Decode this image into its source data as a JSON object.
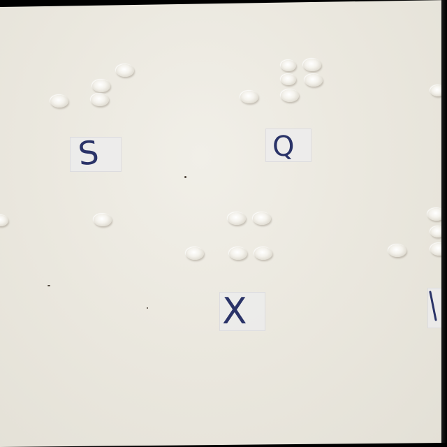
{
  "labels": {
    "s": "S",
    "q": "Q",
    "x": "X"
  },
  "colors": {
    "paper": "#ebe8df",
    "ink": "#2a3368",
    "dot_highlight": "#ffffff"
  },
  "braille_cells": [
    {
      "letter": "S",
      "dots": [
        2,
        3,
        4
      ]
    },
    {
      "letter": "Q",
      "dots": [
        1,
        2,
        3,
        4,
        5
      ]
    },
    {
      "letter": "X",
      "dots": [
        1,
        3,
        4,
        6
      ]
    }
  ]
}
